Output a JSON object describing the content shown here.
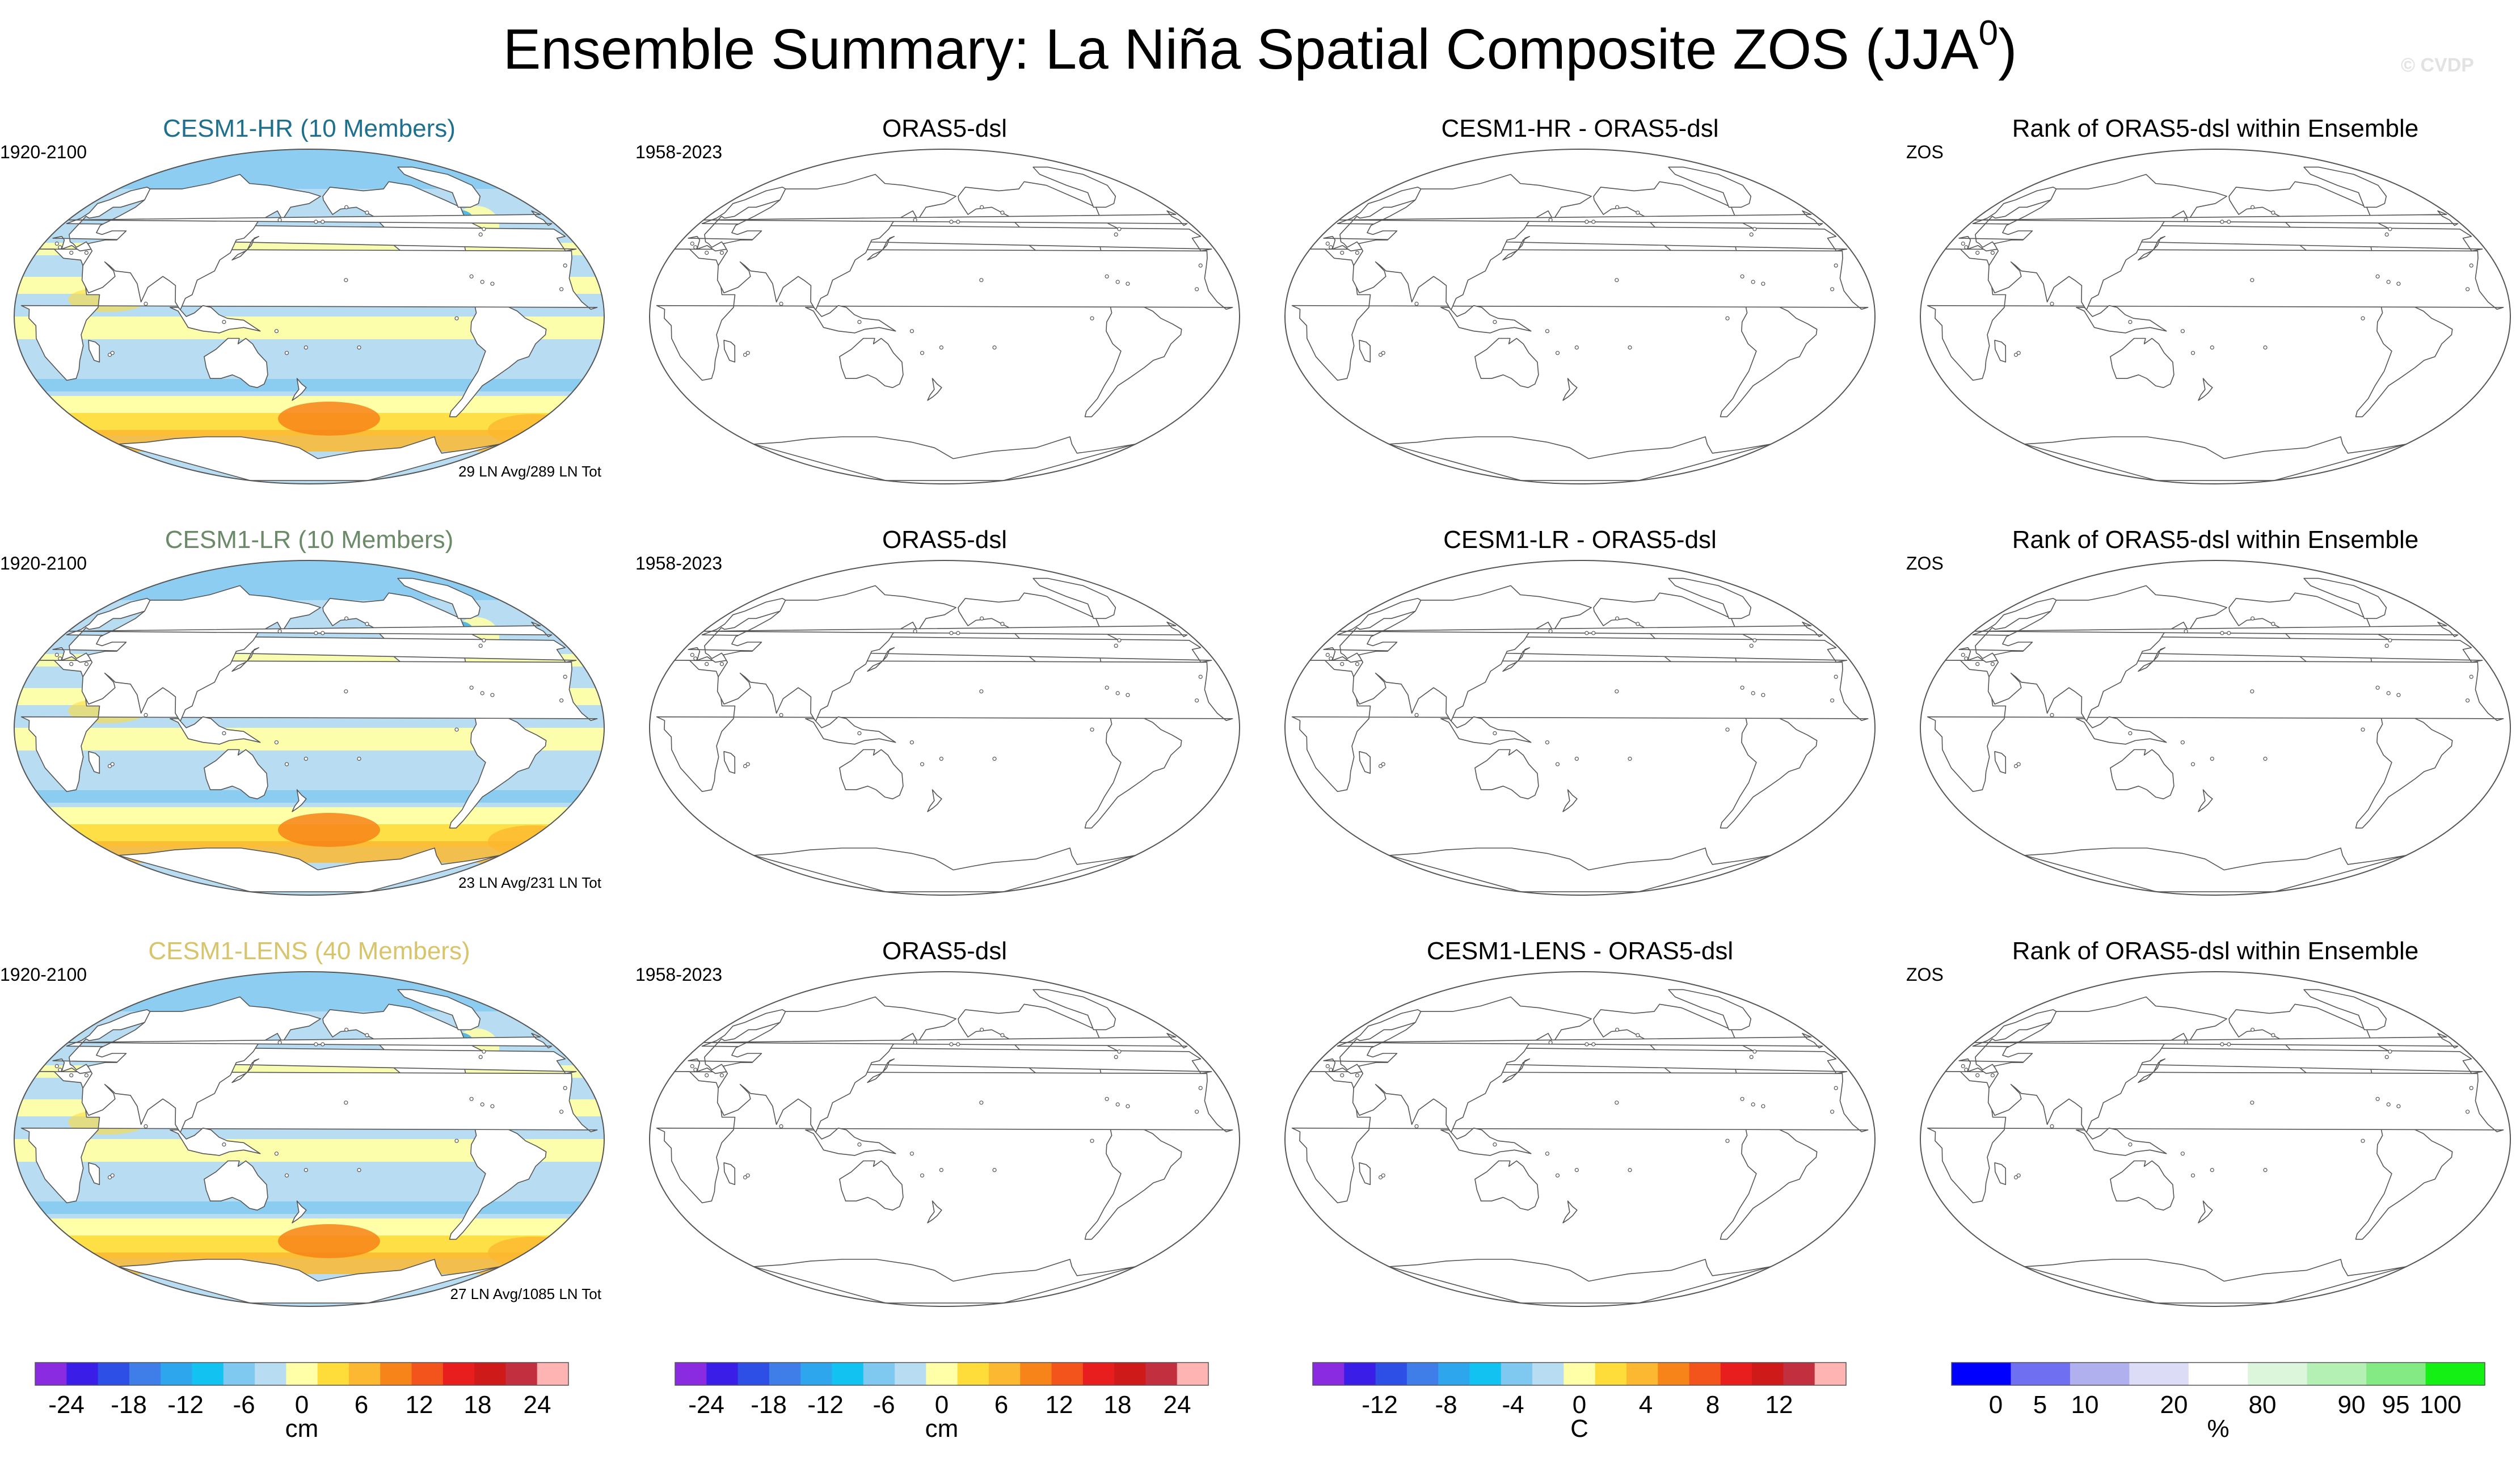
{
  "title": {
    "text": "Ensemble Summary: La Niña Spatial Composite ZOS (JJA",
    "superscript": "0",
    "close": ")"
  },
  "watermark": "© CVDP",
  "colors": {
    "anomaly_scale": [
      "#8a2be2",
      "#3a1ee8",
      "#2d4fe6",
      "#3f7ee8",
      "#2ea6ee",
      "#12c2f0",
      "#7fc8f0",
      "#b8dcf2",
      "#ffffa8",
      "#fedc3a",
      "#fcb830",
      "#f78418",
      "#f2541c",
      "#e81e1e",
      "#cf1a1a",
      "#c23040",
      "#ffb4b4"
    ],
    "rank_scale": [
      "#0000ff",
      "#6f6ff2",
      "#b0b0ee",
      "#dcdcf6",
      "#ffffff",
      "#dcf6dc",
      "#b4f0b4",
      "#84ea84",
      "#14f014"
    ]
  },
  "rows": [
    {
      "panels": [
        {
          "title": "CESM1-HR (10 Members)",
          "left": "1920-2100",
          "footer": "29 LN Avg/289 LN Tot",
          "kind": "field"
        },
        {
          "title": "ORAS5-dsl",
          "left": "1958-2023",
          "footer": "",
          "kind": "empty"
        },
        {
          "title": "CESM1-HR - ORAS5-dsl",
          "left": "",
          "footer": "",
          "kind": "empty"
        },
        {
          "title": "Rank of ORAS5-dsl within Ensemble",
          "left": "ZOS",
          "footer": "",
          "kind": "empty"
        }
      ]
    },
    {
      "panels": [
        {
          "title": "CESM1-LR (10 Members)",
          "left": "1920-2100",
          "footer": "23 LN Avg/231 LN Tot",
          "kind": "field"
        },
        {
          "title": "ORAS5-dsl",
          "left": "1958-2023",
          "footer": "",
          "kind": "empty"
        },
        {
          "title": "CESM1-LR - ORAS5-dsl",
          "left": "",
          "footer": "",
          "kind": "empty"
        },
        {
          "title": "Rank of ORAS5-dsl within Ensemble",
          "left": "ZOS",
          "footer": "",
          "kind": "empty"
        }
      ]
    },
    {
      "panels": [
        {
          "title": "CESM1-LENS (40 Members)",
          "left": "1920-2100",
          "footer": "27 LN Avg/1085 LN Tot",
          "kind": "field"
        },
        {
          "title": "ORAS5-dsl",
          "left": "1958-2023",
          "footer": "",
          "kind": "empty"
        },
        {
          "title": "CESM1-LENS - ORAS5-dsl",
          "left": "",
          "footer": "",
          "kind": "empty"
        },
        {
          "title": "Rank of ORAS5-dsl within Ensemble",
          "left": "ZOS",
          "footer": "",
          "kind": "empty"
        }
      ]
    }
  ],
  "colorbars": [
    {
      "unit": "cm",
      "labels": [
        "-24",
        "-18",
        "-12",
        "-6",
        "0",
        "6",
        "12",
        "18",
        "24"
      ],
      "palette": "anomaly_scale"
    },
    {
      "unit": "cm",
      "labels": [
        "-24",
        "-18",
        "-12",
        "-6",
        "0",
        "6",
        "12",
        "18",
        "24"
      ],
      "palette": "anomaly_scale"
    },
    {
      "unit": "C",
      "labels": [
        "-12",
        "-8",
        "-4",
        "0",
        "4",
        "8",
        "12"
      ],
      "palette": "anomaly_scale"
    },
    {
      "unit": "%",
      "labels": [
        "0",
        "5",
        "10",
        "20",
        "80",
        "90",
        "95",
        "100"
      ],
      "palette": "rank_scale"
    }
  ]
}
